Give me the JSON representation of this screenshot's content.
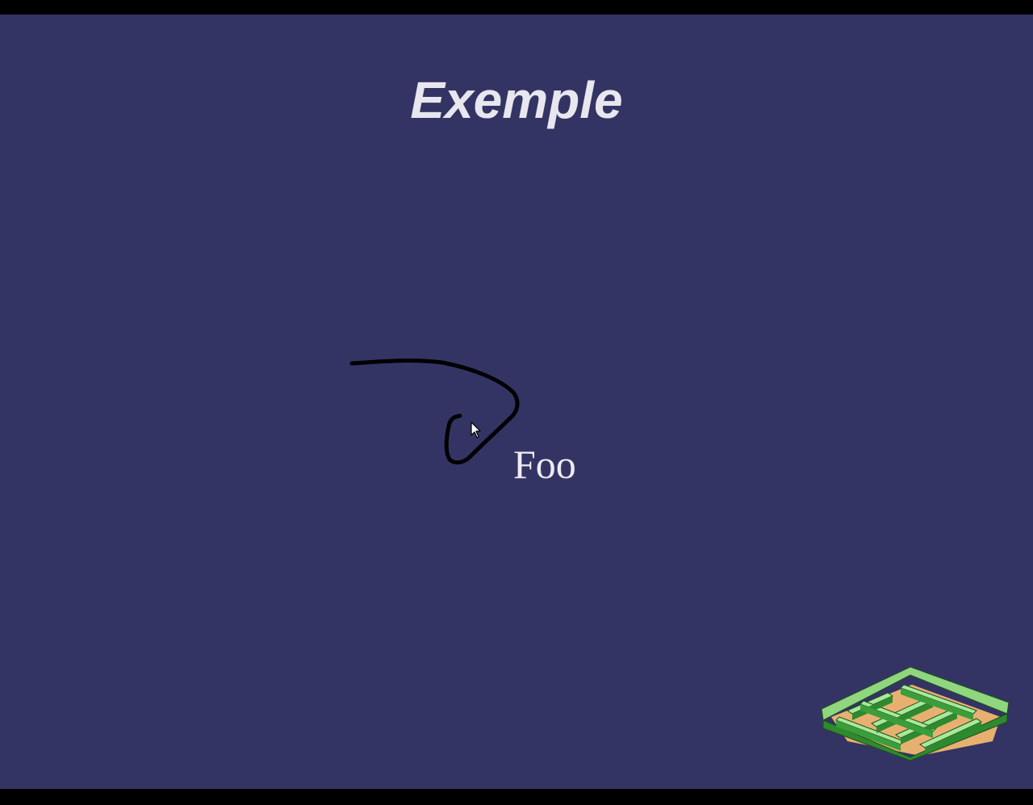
{
  "slide": {
    "title": "Exemple",
    "text_item": "Foo"
  },
  "colors": {
    "background": "#343464",
    "title_text": "#e8e6ee",
    "body_text": "#ecebf2",
    "ink_stroke": "#000000",
    "maze_light": "#8fd67f",
    "maze_dark": "#2e8a2e",
    "maze_ground": "#e8b070"
  },
  "icons": {
    "cursor": "mouse-pointer-icon",
    "decoration": "maze-logo-icon"
  }
}
